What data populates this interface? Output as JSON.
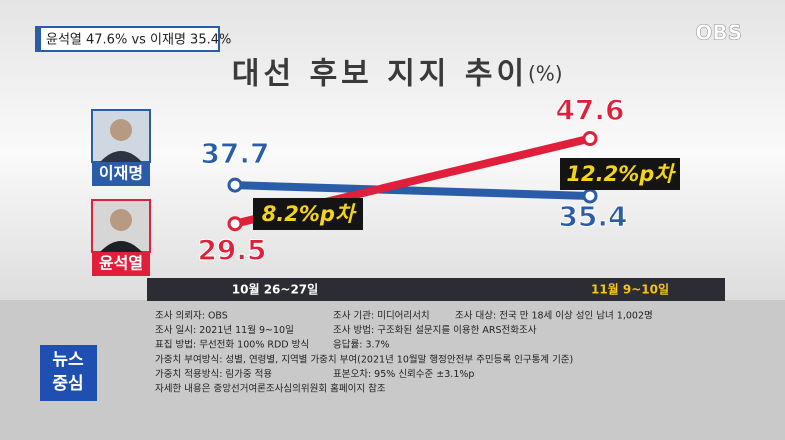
{
  "headline": "윤석열 47.6% vs 이재명 35.4%",
  "logo": "OBS",
  "chart_data": {
    "type": "line",
    "title": "대선 후보 지지 추이",
    "unit": "(%)",
    "categories": [
      "10월 26~27일",
      "11월 9~10일"
    ],
    "series": [
      {
        "name": "이재명",
        "color": "#2a5ca8",
        "values": [
          37.7,
          35.4
        ]
      },
      {
        "name": "윤석열",
        "color": "#e0203a",
        "values": [
          29.5,
          47.6
        ]
      }
    ],
    "annotations": [
      "8.2%p차",
      "12.2%p차"
    ],
    "ylim": [
      22,
      56
    ]
  },
  "notes": [
    [
      "조사 의뢰자: OBS",
      "조사 기관: 미디어리서치",
      "조사 대상: 전국 만 18세 이상 성인 남녀 1,002명"
    ],
    [
      "조사 일시: 2021년 11월 9~10일",
      "조사 방법: 구조화된 설문지를 이용한 ARS전화조사"
    ],
    [
      "표집 방법: 무선전화 100% RDD 방식",
      "응답률: 3.7%"
    ],
    [
      "가중치 부여방식: 성별, 연령별, 지역별 가중치 부여(2021년 10월말 행정안전부 주민등록 인구통계 기준)"
    ],
    [
      "가중치 적용방식: 림가중 적용",
      "표본오차: 95% 신뢰수준 ±3.1%p"
    ],
    [
      "자세한 내용은 중앙선거여론조사심의위원회 홈페이지 참조"
    ]
  ],
  "badge": [
    "뉴스",
    "중심"
  ]
}
